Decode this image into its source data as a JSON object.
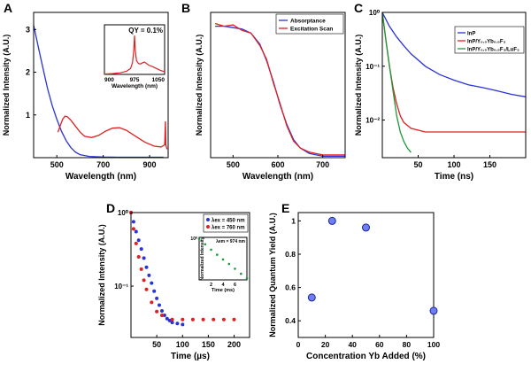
{
  "chart_data": [
    {
      "panel": "A",
      "type": "line",
      "xlabel": "Wavelength (nm)",
      "ylabel": "Normalized Intensity (A.U.)",
      "xlim": [
        400,
        980
      ],
      "ylim": [
        0,
        3.4
      ],
      "xticks": [
        "500",
        "700",
        "900"
      ],
      "yticks": [
        "1",
        "2",
        "3"
      ],
      "series": [
        {
          "color": "#2a33d6",
          "x": [
            400,
            420,
            440,
            460,
            480,
            500,
            520,
            540,
            560,
            580,
            600,
            640,
            700,
            760,
            820,
            900,
            960
          ],
          "y": [
            3.1,
            2.6,
            2.1,
            1.62,
            1.22,
            0.9,
            0.62,
            0.4,
            0.24,
            0.13,
            0.07,
            0.03,
            0.015,
            0.01,
            0.01,
            0.01,
            0.01
          ]
        },
        {
          "color": "#e02020",
          "x": [
            505,
            515,
            525,
            535,
            545,
            560,
            580,
            600,
            620,
            650,
            680,
            710,
            740,
            770,
            800,
            840,
            880,
            920,
            950,
            965,
            968,
            970,
            975
          ],
          "y": [
            0.6,
            0.75,
            0.9,
            0.97,
            0.96,
            0.88,
            0.74,
            0.6,
            0.5,
            0.47,
            0.52,
            0.62,
            0.69,
            0.7,
            0.64,
            0.5,
            0.36,
            0.27,
            0.25,
            0.3,
            0.85,
            0.3,
            0.2
          ]
        }
      ],
      "inset": {
        "type": "line",
        "annotation": "QY = 0.1%",
        "xlabel": "Wavelength (nm)",
        "xticks": [
          "900",
          "975",
          "1050"
        ],
        "xlim": [
          900,
          1050
        ],
        "ylim": [
          0,
          1.05
        ],
        "series": [
          {
            "color": "#e02020",
            "x": [
              900,
              920,
              940,
              955,
              965,
              970,
              973,
              975,
              977,
              980,
              985,
              990,
              995,
              1000,
              1005,
              1010,
              1020,
              1030,
              1040,
              1050
            ],
            "y": [
              0.01,
              0.02,
              0.04,
              0.08,
              0.15,
              0.3,
              0.6,
              1.0,
              0.6,
              0.35,
              0.28,
              0.27,
              0.3,
              0.32,
              0.28,
              0.24,
              0.2,
              0.15,
              0.1,
              0.07
            ]
          }
        ]
      }
    },
    {
      "panel": "B",
      "type": "line",
      "xlabel": "Wavelength (nm)",
      "ylabel": "Normalized Intensity (A.U.)",
      "xlim": [
        450,
        750
      ],
      "ylim": [
        0,
        1.05
      ],
      "xticks": [
        "500",
        "600",
        "700"
      ],
      "legend": {
        "position": "top-right",
        "entries": [
          "Absorptance",
          "Excitation Scan"
        ]
      },
      "series": [
        {
          "name": "Absorptance",
          "color": "#2a33d6",
          "x": [
            460,
            480,
            500,
            520,
            540,
            560,
            575,
            590,
            605,
            620,
            635,
            650,
            670,
            700,
            730,
            750
          ],
          "y": [
            0.95,
            0.95,
            0.94,
            0.93,
            0.9,
            0.82,
            0.7,
            0.55,
            0.38,
            0.24,
            0.13,
            0.07,
            0.03,
            0.01,
            0.01,
            0.01
          ]
        },
        {
          "name": "Excitation Scan",
          "color": "#e02020",
          "x": [
            460,
            480,
            500,
            520,
            540,
            560,
            575,
            590,
            605,
            620,
            635,
            650,
            670,
            700,
            730,
            750
          ],
          "y": [
            0.97,
            0.95,
            0.96,
            0.92,
            0.9,
            0.81,
            0.71,
            0.54,
            0.39,
            0.23,
            0.12,
            0.07,
            0.04,
            0.02,
            0.02,
            0.02
          ]
        }
      ]
    },
    {
      "panel": "C",
      "type": "line",
      "xlabel": "Time (ns)",
      "ylabel": "Normalized Intensity (A.U.)",
      "yscale": "log",
      "xlim": [
        0,
        200
      ],
      "ylim": [
        0.002,
        1
      ],
      "xticks": [
        "50",
        "100",
        "150"
      ],
      "yticks": [
        "10⁰",
        "10⁻¹",
        "10⁻²"
      ],
      "legend": {
        "position": "top-right",
        "entries": [
          "InP",
          "InP/Y₀.₅Yb₀.₅F₃",
          "InP/Y₀.₅Yb₀.₅F₃/LuF₃"
        ]
      },
      "series": [
        {
          "name": "InP",
          "color": "#2a33d6",
          "x": [
            0,
            10,
            20,
            30,
            40,
            60,
            80,
            100,
            120,
            140,
            160,
            180,
            200
          ],
          "y": [
            1,
            0.55,
            0.35,
            0.24,
            0.17,
            0.1,
            0.07,
            0.055,
            0.045,
            0.04,
            0.035,
            0.03,
            0.027
          ]
        },
        {
          "name": "InP/Y₀.₅Yb₀.₅F₃",
          "color": "#e02020",
          "x": [
            0,
            5,
            10,
            15,
            20,
            25,
            30,
            40,
            60,
            80,
            100,
            120,
            140,
            160,
            180,
            200
          ],
          "y": [
            1,
            0.3,
            0.1,
            0.04,
            0.02,
            0.012,
            0.009,
            0.007,
            0.006,
            0.006,
            0.006,
            0.006,
            0.006,
            0.006,
            0.006,
            0.006
          ]
        },
        {
          "name": "InP/Y₀.₅Yb₀.₅F₃/LuF₃",
          "color": "#1a9a3a",
          "x": [
            0,
            5,
            10,
            15,
            20,
            25,
            30,
            35,
            40
          ],
          "y": [
            1,
            0.3,
            0.1,
            0.035,
            0.012,
            0.006,
            0.004,
            0.003,
            0.0025
          ]
        }
      ]
    },
    {
      "panel": "D",
      "type": "scatter",
      "xlabel": "Time (µs)",
      "ylabel": "Normalized Intensity (A.U.)",
      "yscale": "log",
      "xlim": [
        0,
        230
      ],
      "ylim": [
        0.02,
        1
      ],
      "xticks": [
        "50",
        "100",
        "150",
        "200"
      ],
      "yticks": [
        "10⁰",
        "10⁻¹"
      ],
      "legend": {
        "position": "top-right",
        "entries": [
          "λex = 450 nm",
          "λex = 760 nm"
        ]
      },
      "series": [
        {
          "name": "λex = 450 nm",
          "color": "#2a33d6",
          "x": [
            0,
            5,
            10,
            15,
            20,
            25,
            30,
            35,
            40,
            45,
            50,
            55,
            60,
            65,
            70,
            75,
            80,
            90,
            100
          ],
          "y": [
            1,
            0.75,
            0.55,
            0.42,
            0.32,
            0.24,
            0.18,
            0.14,
            0.11,
            0.085,
            0.068,
            0.055,
            0.046,
            0.04,
            0.036,
            0.034,
            0.032,
            0.031,
            0.03
          ]
        },
        {
          "name": "λex = 760 nm",
          "color": "#e02020",
          "x": [
            0,
            5,
            10,
            15,
            20,
            25,
            30,
            40,
            50,
            60,
            80,
            100,
            120,
            140,
            160,
            180,
            200
          ],
          "y": [
            1,
            0.6,
            0.38,
            0.25,
            0.17,
            0.12,
            0.09,
            0.06,
            0.045,
            0.04,
            0.035,
            0.035,
            0.035,
            0.035,
            0.035,
            0.035,
            0.035
          ]
        }
      ],
      "inset": {
        "type": "scatter",
        "ylabel": "Normalized Intensity",
        "xlabel": "Time (ms)",
        "yscale": "log",
        "xlim": [
          0,
          8
        ],
        "xticks": [
          "2",
          "4",
          "6"
        ],
        "yticks": [
          "10⁰"
        ],
        "legend": [
          "λem = 974 nm"
        ],
        "series": [
          {
            "name": "λem = 974 nm",
            "color": "#1a9a3a",
            "x": [
              0,
              1,
              2,
              3,
              4,
              5,
              6,
              7,
              8
            ],
            "y": [
              1,
              0.55,
              0.3,
              0.17,
              0.1,
              0.06,
              0.035,
              0.02,
              0.012
            ]
          }
        ]
      }
    },
    {
      "panel": "E",
      "type": "scatter",
      "xlabel": "Concentration Yb Added (%)",
      "ylabel": "Normalized Quantum Yield (A.U.)",
      "xlim": [
        0,
        100
      ],
      "ylim": [
        0.3,
        1.05
      ],
      "xticks": [
        "0",
        "20",
        "40",
        "60",
        "80",
        "100"
      ],
      "yticks": [
        "0.4",
        "0.6",
        "0.8",
        "1"
      ],
      "series": [
        {
          "color": "#6f7ff2",
          "x": [
            10,
            25,
            50,
            100
          ],
          "y": [
            0.54,
            1.0,
            0.96,
            0.46
          ]
        }
      ]
    }
  ]
}
